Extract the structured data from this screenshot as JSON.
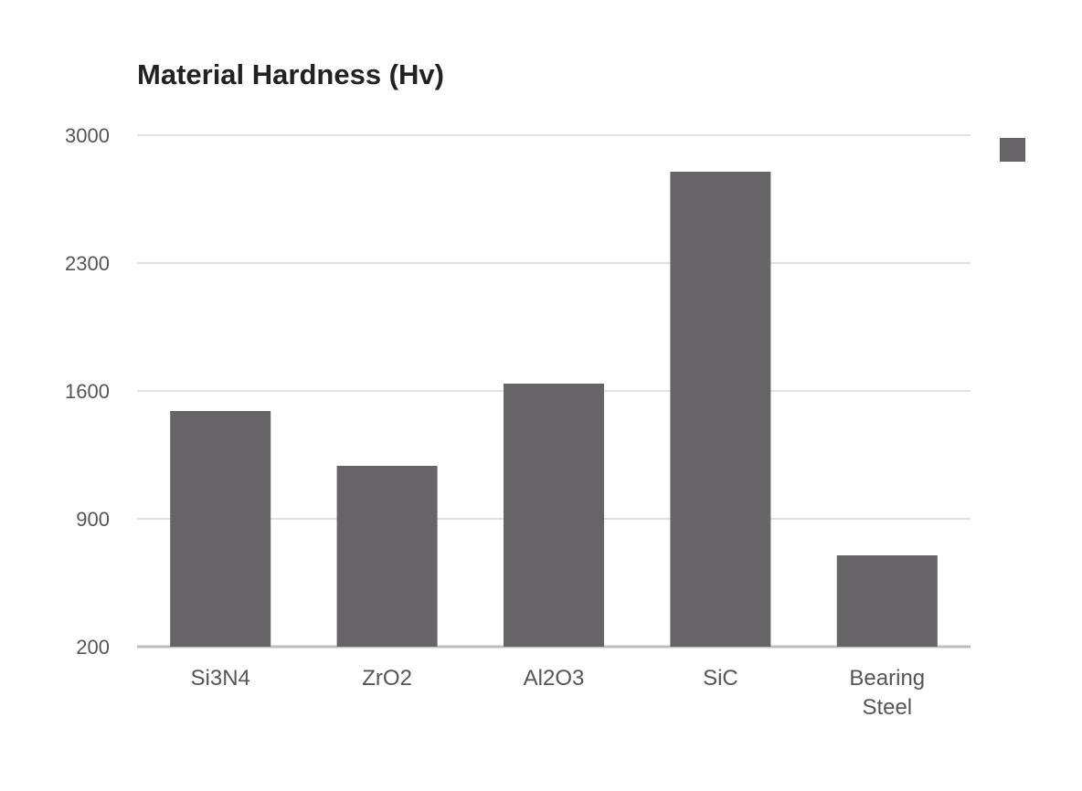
{
  "chart_data": {
    "type": "bar",
    "title": "Material Hardness (Hv)",
    "xlabel": "",
    "ylabel": "",
    "categories": [
      [
        "Si3N4"
      ],
      [
        "ZrO2"
      ],
      [
        "Al2O3"
      ],
      [
        "SiC"
      ],
      [
        "Bearing",
        "Steel"
      ]
    ],
    "values": [
      1490,
      1190,
      1640,
      2800,
      700
    ],
    "ylim": [
      200,
      3000
    ],
    "yticks": [
      "200",
      "900",
      "1600",
      "2300",
      "3000"
    ],
    "grid": true,
    "legend": "top-right",
    "colors": {
      "bar": "#666466",
      "grid": "#e2e2e2",
      "baseline": "#bdbdbd"
    }
  }
}
